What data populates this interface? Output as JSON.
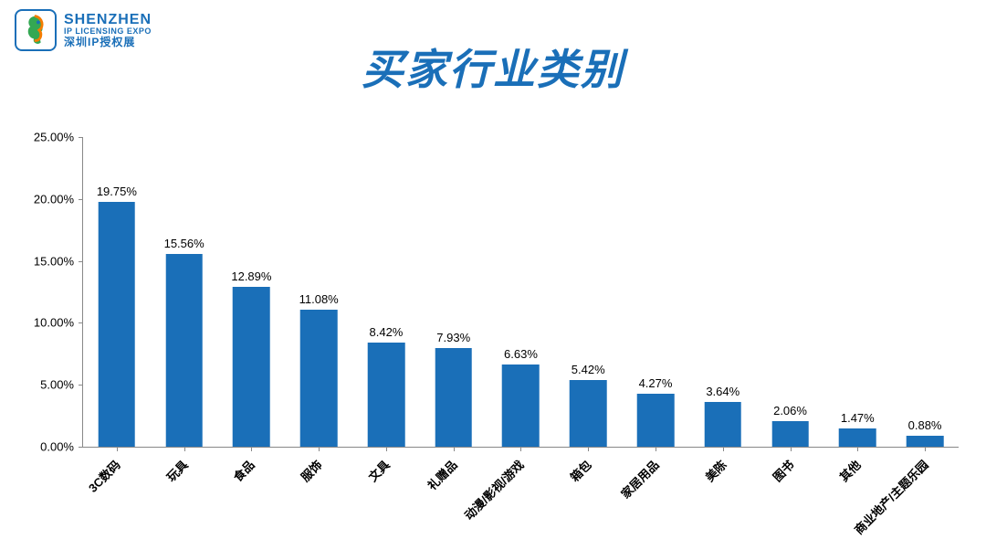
{
  "logo": {
    "line1": "SHENZHEN",
    "line2": "IP LICENSING EXPO",
    "line3": "深圳IP授权展",
    "border_color": "#1a6fb8"
  },
  "title": {
    "text": "买家行业类别",
    "color": "#1a6fb8",
    "fontsize": 46
  },
  "chart": {
    "type": "bar",
    "ylim": [
      0,
      25
    ],
    "ytick_step": 5,
    "ytick_format_suffix": ".00%",
    "axis_color": "#888888",
    "bar_color": "#1a6fb8",
    "bar_width_ratio": 0.55,
    "label_fontsize": 13,
    "label_color": "#000000",
    "tick_fontsize": 13,
    "background_color": "#ffffff",
    "categories": [
      "3C数码",
      "玩具",
      "食品",
      "服饰",
      "文具",
      "礼赠品",
      "动漫/影视/游戏",
      "箱包",
      "家居用品",
      "美陈",
      "图书",
      "其他",
      "商业地产/主题乐园"
    ],
    "values": [
      19.75,
      15.56,
      12.89,
      11.08,
      8.42,
      7.93,
      6.63,
      5.42,
      4.27,
      3.64,
      2.06,
      1.47,
      0.88
    ],
    "value_labels": [
      "19.75%",
      "15.56%",
      "12.89%",
      "11.08%",
      "8.42%",
      "7.93%",
      "6.63%",
      "5.42%",
      "4.27%",
      "3.64%",
      "2.06%",
      "1.47%",
      "0.88%"
    ],
    "y_ticks": [
      {
        "v": 0,
        "label": "0.00%"
      },
      {
        "v": 5,
        "label": "5.00%"
      },
      {
        "v": 10,
        "label": "10.00%"
      },
      {
        "v": 15,
        "label": "15.00%"
      },
      {
        "v": 20,
        "label": "20.00%"
      },
      {
        "v": 25,
        "label": "25.00%"
      }
    ]
  }
}
